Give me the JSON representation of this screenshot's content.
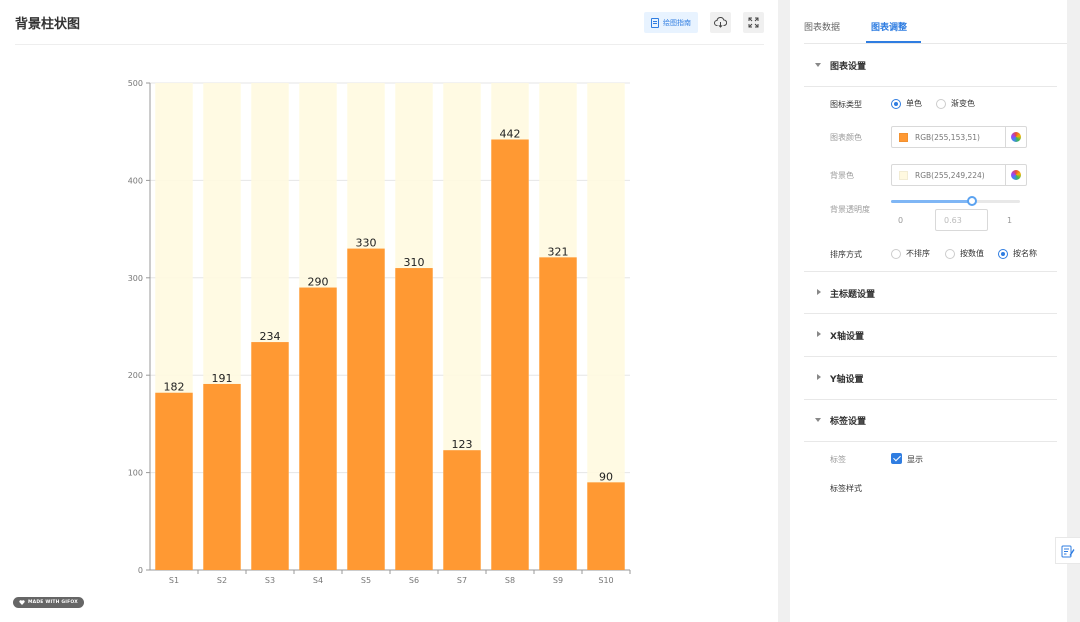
{
  "header": {
    "title": "背景柱状图",
    "guide_label": "绘图指南",
    "download_icon": "cloud-download-icon",
    "fullscreen_icon": "fullscreen-icon"
  },
  "watermark": "MADE WITH GIFOX",
  "chart_data": {
    "type": "bar",
    "categories": [
      "S1",
      "S2",
      "S3",
      "S4",
      "S5",
      "S6",
      "S7",
      "S8",
      "S9",
      "S10"
    ],
    "values": [
      182,
      191,
      234,
      290,
      330,
      310,
      123,
      442,
      321,
      90
    ],
    "ylim": [
      0,
      500
    ],
    "yticks": [
      "0",
      "100",
      "200",
      "300",
      "400",
      "500"
    ],
    "bar_color": "#ff9933",
    "background_color": "#fff9e0",
    "background_opacity": 0.63,
    "show_labels": true,
    "grid": true
  },
  "settings": {
    "tabs": [
      "图表数据",
      "图表调整"
    ],
    "active_tab": 1,
    "sections": {
      "chart": "图表设置",
      "main_title": "主标题设置",
      "x_axis": "X轴设置",
      "y_axis": "Y轴设置",
      "labels": "标签设置"
    },
    "chart_type": {
      "label": "图标类型",
      "options": [
        "单色",
        "渐变色"
      ],
      "selected": 0
    },
    "chart_color": {
      "label": "图表颜色",
      "value": "RGB(255,153,51)",
      "hex": "#ff9933"
    },
    "bg_color": {
      "label": "背景色",
      "value": "RGB(255,249,224)",
      "hex": "#fff9e0"
    },
    "bg_opacity": {
      "label": "背景透明度",
      "min": "0",
      "max": "1",
      "value": "0.63"
    },
    "sort": {
      "label": "排序方式",
      "options": [
        "不排序",
        "按数值",
        "按名称"
      ],
      "selected": 2
    },
    "label_toggle": {
      "label": "标签",
      "option": "显示",
      "checked": true
    },
    "label_style": "标签样式"
  }
}
